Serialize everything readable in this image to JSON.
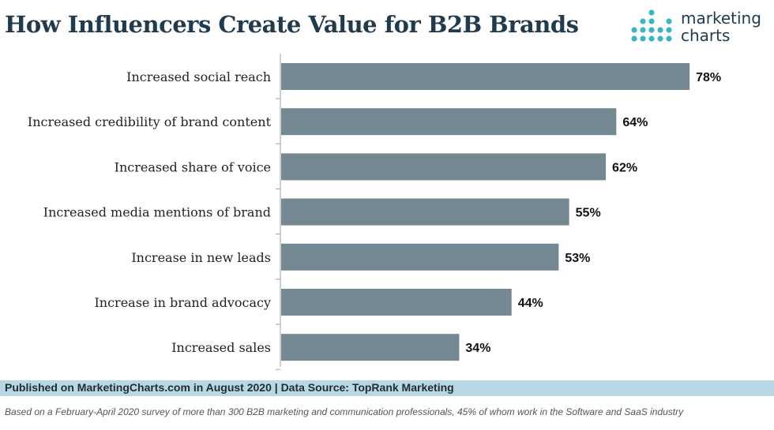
{
  "title": "How Influencers Create Value for B2B Brands",
  "logo": {
    "line1": "marketing",
    "line2": "charts",
    "icon": "marketingcharts-dot-grid-logo"
  },
  "colors": {
    "bar": "#738891",
    "title": "#1f3b4d",
    "footer_band": "#b9d6e3",
    "logo_dots": "#3ab5c6"
  },
  "chart_data": {
    "type": "bar",
    "orientation": "horizontal",
    "categories": [
      "Increased social reach",
      "Increased credibility of brand content",
      "Increased share of voice",
      "Increased media mentions of brand",
      "Increase in new leads",
      "Increase in brand advocacy",
      "Increased sales"
    ],
    "values": [
      78,
      64,
      62,
      55,
      53,
      44,
      34
    ],
    "value_labels": [
      "78%",
      "64%",
      "62%",
      "55%",
      "53%",
      "44%",
      "34%"
    ],
    "xlim": [
      0,
      100
    ],
    "grid": false
  },
  "footer": {
    "source": "Published on MarketingCharts.com in August 2020 | Data Source: TopRank Marketing",
    "note": "Based on a February-April 2020 survey of more than 300 B2B marketing and communication professionals, 45% of whom work in the Software and SaaS industry"
  }
}
